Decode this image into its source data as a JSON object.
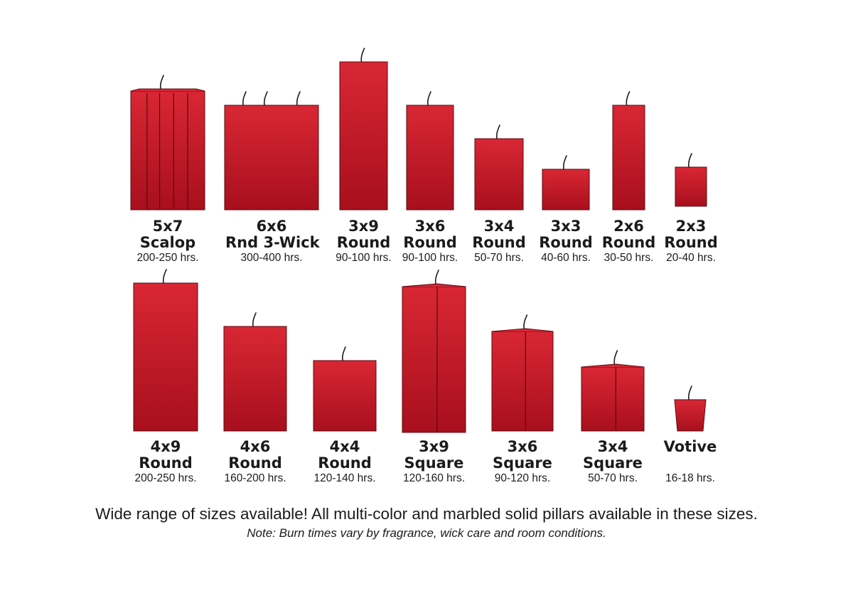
{
  "colors": {
    "wax_top": "#d92734",
    "wax_bottom": "#a80f1d",
    "outline": "#5a0a10",
    "wick": "#222222"
  },
  "rows": [
    {
      "candles": [
        {
          "size": "5x7",
          "shape": "Scalop",
          "hours": "200-250 hrs.",
          "type": "scallop"
        },
        {
          "size": "6x6",
          "shape": "Rnd 3-Wick",
          "hours": "300-400 hrs.",
          "type": "round3"
        },
        {
          "size": "3x9",
          "shape": "Round",
          "hours": "90-100 hrs.",
          "type": "round"
        },
        {
          "size": "3x6",
          "shape": "Round",
          "hours": "90-100 hrs.",
          "type": "round"
        },
        {
          "size": "3x4",
          "shape": "Round",
          "hours": "50-70 hrs.",
          "type": "round"
        },
        {
          "size": "3x3",
          "shape": "Round",
          "hours": "40-60 hrs.",
          "type": "round"
        },
        {
          "size": "2x6",
          "shape": "Round",
          "hours": "30-50 hrs.",
          "type": "round"
        },
        {
          "size": "2x3",
          "shape": "Round",
          "hours": "20-40 hrs.",
          "type": "round"
        }
      ]
    },
    {
      "candles": [
        {
          "size": "4x9",
          "shape": "Round",
          "hours": "200-250 hrs.",
          "type": "round"
        },
        {
          "size": "4x6",
          "shape": "Round",
          "hours": "160-200 hrs.",
          "type": "round"
        },
        {
          "size": "4x4",
          "shape": "Round",
          "hours": "120-140 hrs.",
          "type": "round"
        },
        {
          "size": "3x9",
          "shape": "Square",
          "hours": "120-160 hrs.",
          "type": "square"
        },
        {
          "size": "3x6",
          "shape": "Square",
          "hours": "90-120 hrs.",
          "type": "square"
        },
        {
          "size": "3x4",
          "shape": "Square",
          "hours": "50-70 hrs.",
          "type": "square"
        },
        {
          "size": "Votive",
          "shape": "",
          "hours": "16-18 hrs.",
          "type": "votive"
        }
      ]
    }
  ],
  "note_main": "Wide range of sizes available! All multi-color and marbled solid pillars available in these sizes.",
  "note_sub": "Note: Burn times vary by fragrance, wick care and room conditions."
}
